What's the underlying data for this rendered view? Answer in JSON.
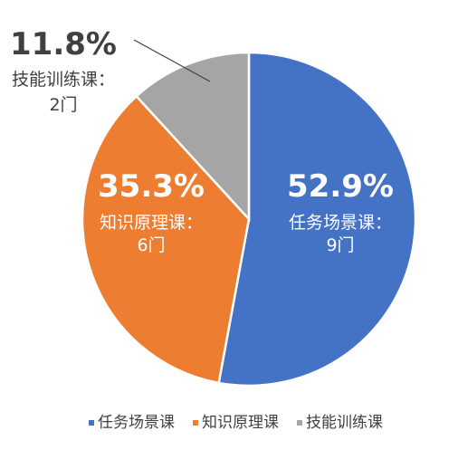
{
  "chart_data": {
    "type": "pie",
    "title": "",
    "slices": [
      {
        "label": "任务场景课",
        "value": 52.9,
        "percent_text": "52.9%",
        "count_text": "9门",
        "color": "#4472C4"
      },
      {
        "label": "知识原理课",
        "value": 35.3,
        "percent_text": "35.3%",
        "count_text": "6门",
        "color": "#ED7D31"
      },
      {
        "label": "技能训练课",
        "value": 11.8,
        "percent_text": "11.8%",
        "count_text": "2门",
        "color": "#A5A5A5"
      }
    ],
    "legend": {
      "position": "bottom",
      "entries": [
        "任务场景课",
        "知识原理课",
        "技能训练课"
      ]
    },
    "label_separator": "："
  }
}
